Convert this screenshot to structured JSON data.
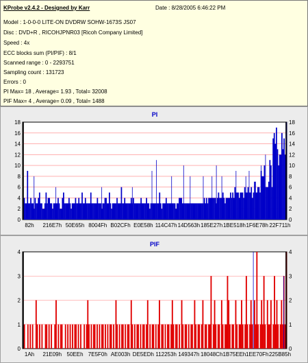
{
  "info": {
    "title": "KProbe v2.4.2 - Designed by Karr",
    "date": "Date : 8/28/2005 6:46:22 PM",
    "lines": [
      "Model : 1-0-0-0 LITE-ON DVDRW SOHW-1673S JS07",
      "Disc : DVD+R , RICOHJPNR03 [Ricoh Company Limited]",
      "Speed : 4x",
      "ECC blocks sum (PI/PIF) : 8/1",
      "Scanned range : 0 - 2293751",
      "Sampling count : 131723",
      "Errors : 0",
      "PI Max= 18 , Average= 1.93 , Total= 32008",
      "PIF Max= 4 , Average= 0.09 , Total= 1488"
    ]
  },
  "chart_data": [
    {
      "type": "bar",
      "title": "PI",
      "ylim": [
        0,
        18
      ],
      "yticks": [
        0,
        2,
        4,
        6,
        8,
        10,
        12,
        14,
        16,
        18
      ],
      "x_tick_labels": [
        "82h",
        "216E7h",
        "50E65h",
        "8004Fh",
        "B02CFh",
        "E0E58h",
        "114C47h",
        "14D563h",
        "185E27h",
        "1BE518h",
        "1F6E78h",
        "22F711h"
      ],
      "grid": true,
      "colors": {
        "bars": "#0000c8",
        "grid": "#ff8080",
        "plot_bg": "#ffffff",
        "title": "#0000c8"
      },
      "values": [
        3,
        4,
        3,
        3,
        9,
        3,
        3,
        4,
        3,
        3,
        2,
        4,
        3,
        3,
        4,
        5,
        3,
        3,
        2,
        2,
        3,
        5,
        3,
        4,
        4,
        3,
        3,
        2,
        3,
        3,
        3,
        3,
        4,
        3,
        2,
        2,
        4,
        5,
        3,
        3,
        3,
        3,
        4,
        3,
        2,
        3,
        3,
        3,
        4,
        3,
        3,
        4,
        3,
        3,
        5,
        3,
        3,
        4,
        3,
        3,
        3,
        3,
        5,
        3,
        3,
        3,
        3,
        3,
        4,
        3,
        3,
        3,
        2,
        3,
        3,
        4,
        4,
        3,
        3,
        5,
        3,
        2,
        3,
        3,
        3,
        3,
        4,
        3,
        3,
        3,
        6,
        3,
        3,
        4,
        3,
        3,
        3,
        3,
        3,
        4,
        3,
        4,
        3,
        3,
        3,
        3,
        3,
        3,
        4,
        3,
        3,
        3,
        3,
        4,
        3,
        3,
        2,
        3,
        3,
        3,
        3,
        3,
        3,
        3,
        3,
        5,
        3,
        2,
        3,
        3,
        3,
        4,
        3,
        3,
        3,
        3,
        3,
        3,
        3,
        3,
        2,
        3,
        3,
        4,
        4,
        4,
        3,
        3,
        3,
        3,
        3,
        3,
        3,
        3,
        3,
        3,
        3,
        3,
        3,
        3,
        3,
        3,
        3,
        3,
        3,
        3,
        4,
        3,
        4,
        3,
        4,
        4,
        4,
        4,
        4,
        4,
        4,
        3,
        4,
        5,
        4,
        4,
        4,
        5,
        4,
        3,
        4,
        4,
        4,
        4,
        5,
        4,
        5,
        4,
        6,
        5,
        5,
        5,
        4,
        5,
        5,
        5,
        4,
        6,
        5,
        5,
        6,
        5,
        5,
        6,
        4,
        5,
        7,
        5,
        5,
        6,
        6,
        5,
        9,
        8,
        8,
        10,
        6,
        6,
        6,
        7,
        11,
        10,
        6,
        15,
        16,
        14,
        17,
        13,
        10,
        12,
        12,
        16,
        13,
        15,
        12,
        18
      ],
      "spikes": [
        [
          10,
          8
        ],
        [
          30,
          6
        ],
        [
          72,
          6
        ],
        [
          100,
          6
        ],
        [
          118,
          9
        ],
        [
          122,
          11
        ],
        [
          136,
          8
        ],
        [
          147,
          10
        ],
        [
          153,
          8
        ],
        [
          165,
          8
        ],
        [
          173,
          8
        ],
        [
          177,
          10
        ],
        [
          182,
          8
        ],
        [
          195,
          9
        ],
        [
          204,
          8
        ],
        [
          207,
          9
        ],
        [
          213,
          7
        ],
        [
          218,
          10
        ],
        [
          222,
          12
        ]
      ]
    },
    {
      "type": "bar",
      "title": "PIF",
      "ylim": [
        0,
        4
      ],
      "yticks": [
        0,
        1,
        2,
        3,
        4
      ],
      "x_tick_labels": [
        "1Ah",
        "21E09h",
        "50EEh",
        "7E5F0h",
        "AE003h",
        "DE5EDh",
        "112253h",
        "149347h",
        "18048Ch",
        "1B75EEh",
        "1EE70Fh",
        "225B85h"
      ],
      "grid": true,
      "colors": {
        "bars": "#e00000",
        "bars_alt": "#0000c8",
        "grid": "#ff8080",
        "plot_bg": "#ffffff",
        "title": "#0000c8"
      },
      "values": [
        0,
        1,
        0,
        0,
        1,
        0,
        1,
        0,
        1,
        0,
        0,
        2,
        1,
        0,
        1,
        0,
        1,
        0,
        0,
        1,
        1,
        0,
        1,
        0,
        1,
        0,
        0,
        1,
        2,
        0,
        1,
        0,
        1,
        1,
        0,
        0,
        1,
        0,
        1,
        0,
        1,
        0,
        1,
        0,
        1,
        1,
        0,
        1,
        0,
        1,
        0,
        0,
        1,
        0,
        1,
        2,
        1,
        0,
        1,
        0,
        1,
        1,
        0,
        1,
        0,
        1,
        0,
        1,
        1,
        0,
        1,
        0,
        1,
        0,
        1,
        1,
        0,
        1,
        0,
        2,
        1,
        0,
        1,
        0,
        1,
        1,
        0,
        1,
        0,
        1,
        1,
        0,
        2,
        1,
        0,
        1,
        0,
        1,
        1,
        0,
        1,
        0,
        1,
        1,
        0,
        1,
        2,
        0,
        1,
        0,
        1,
        1,
        0,
        1,
        0,
        1,
        2,
        0,
        1,
        1,
        0,
        1,
        0,
        1,
        1,
        0,
        1,
        2,
        1,
        0,
        1,
        1,
        0,
        1,
        0,
        2,
        1,
        0,
        1,
        1,
        0,
        1,
        0,
        1,
        1,
        0,
        2,
        1,
        0,
        1,
        1,
        0,
        1,
        2,
        0,
        1,
        1,
        0,
        1,
        1,
        3,
        0,
        1,
        2,
        1,
        0,
        1,
        1,
        0,
        2,
        1,
        0,
        1,
        1,
        3,
        2,
        1,
        0,
        1,
        1,
        0,
        2,
        1,
        0,
        1,
        1,
        2,
        1,
        0,
        1,
        3,
        1,
        0,
        1,
        2,
        1,
        0,
        2,
        1,
        4,
        1,
        0,
        1,
        2,
        1,
        3,
        1,
        0,
        2,
        1,
        1,
        2,
        0,
        1,
        3,
        1,
        2,
        1,
        0,
        1,
        2,
        1,
        3,
        1,
        4
      ],
      "blue_marks": [
        [
          196,
          4
        ],
        [
          222,
          3
        ]
      ]
    }
  ]
}
